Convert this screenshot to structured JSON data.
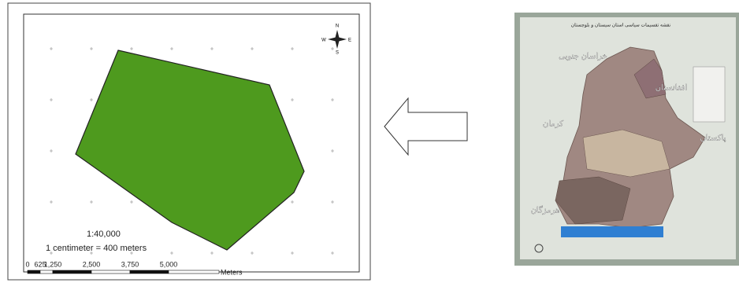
{
  "left_map": {
    "scale_ratio": "1:40,000",
    "scale_text": "1 centimeter = 400 meters",
    "scale_bar": {
      "labels": [
        "0",
        "625",
        "1,250",
        "2,500",
        "3,750",
        "5,000"
      ],
      "unit": "Meters"
    },
    "compass": {
      "north": "N",
      "south": "S",
      "east": "E",
      "west": "W"
    }
  },
  "right_map": {
    "title": "نقشه تقسیمات سیاسی استان سیستان و بلوچستان",
    "labels": [
      "خراسان جنوبی",
      "افغانستان",
      "کرمان",
      "پاکستان",
      "هرمزگان"
    ]
  }
}
